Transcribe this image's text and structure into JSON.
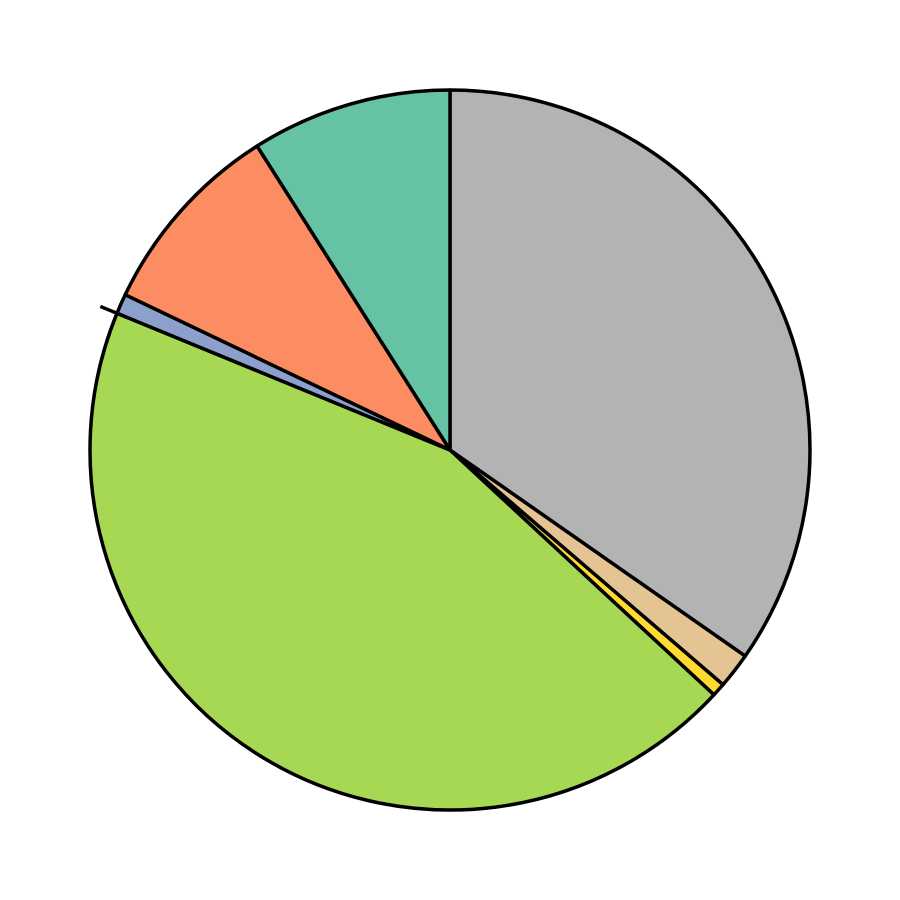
{
  "chart_data": {
    "type": "pie",
    "title": "",
    "start_angle_deg": 90,
    "direction": "clockwise",
    "slices": [
      {
        "value": 34.7,
        "color": "#b3b3b3"
      },
      {
        "value": 1.6,
        "color": "#e5c494"
      },
      {
        "value": 0.6,
        "color": "#ffd92f"
      },
      {
        "value": 44.3,
        "color": "#a6d854"
      },
      {
        "value": 0.9,
        "color": "#8da0cb"
      },
      {
        "value": 8.9,
        "color": "#fc8d62"
      },
      {
        "value": 9.0,
        "color": "#66c2a5"
      }
    ],
    "legend": false
  }
}
